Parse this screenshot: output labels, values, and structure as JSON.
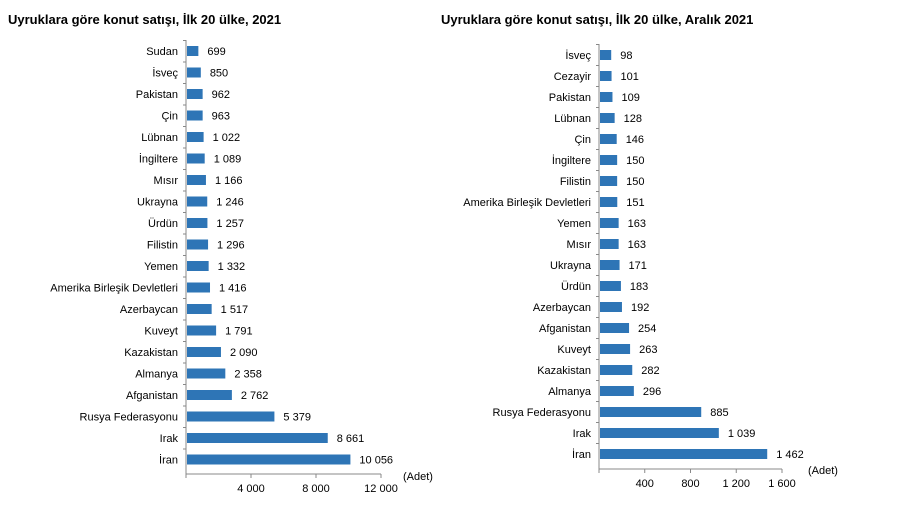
{
  "chart_data": [
    {
      "type": "bar",
      "orientation": "horizontal",
      "title": "Uyruklara göre konut satışı, İlk 20 ülke, 2021",
      "unit_label": "(Adet)",
      "categories": [
        "Sudan",
        "İsveç",
        "Pakistan",
        "Çin",
        "Lübnan",
        "İngiltere",
        "Mısır",
        "Ukrayna",
        "Ürdün",
        "Filistin",
        "Yemen",
        "Amerika Birleşik Devletleri",
        "Azerbaycan",
        "Kuveyt",
        "Kazakistan",
        "Almanya",
        "Afganistan",
        "Rusya Federasyonu",
        "Irak",
        "İran"
      ],
      "values": [
        699,
        850,
        962,
        963,
        1022,
        1089,
        1166,
        1246,
        1257,
        1296,
        1332,
        1416,
        1517,
        1791,
        2090,
        2358,
        2762,
        5379,
        8661,
        10056
      ],
      "value_labels": [
        "699",
        "850",
        "962",
        "963",
        "1 022",
        "1 089",
        "1 166",
        "1 246",
        "1 257",
        "1 296",
        "1 332",
        "1 416",
        "1 517",
        "1 791",
        "2 090",
        "2 358",
        "2 762",
        "5 379",
        "8 661",
        "10 056"
      ],
      "xlim": [
        0,
        12000
      ],
      "xticks": [
        4000,
        8000,
        12000
      ],
      "xtick_labels": [
        "4 000",
        "8 000",
        "12 000"
      ],
      "bar_color": "#2e75b6"
    },
    {
      "type": "bar",
      "orientation": "horizontal",
      "title": "Uyruklara göre konut satışı, İlk 20 ülke, Aralık 2021",
      "unit_label": "(Adet)",
      "categories": [
        "İsveç",
        "Cezayir",
        "Pakistan",
        "Lübnan",
        "Çin",
        "İngiltere",
        "Filistin",
        "Amerika Birleşik Devletleri",
        "Yemen",
        "Mısır",
        "Ukrayna",
        "Ürdün",
        "Azerbaycan",
        "Afganistan",
        "Kuveyt",
        "Kazakistan",
        "Almanya",
        "Rusya Federasyonu",
        "Irak",
        "İran"
      ],
      "values": [
        98,
        101,
        109,
        128,
        146,
        150,
        150,
        151,
        163,
        163,
        171,
        183,
        192,
        254,
        263,
        282,
        296,
        885,
        1039,
        1462
      ],
      "value_labels": [
        "98",
        "101",
        "109",
        "128",
        "146",
        "150",
        "150",
        "151",
        "163",
        "163",
        "171",
        "183",
        "192",
        "254",
        "263",
        "282",
        "296",
        "885",
        "1 039",
        "1 462"
      ],
      "xlim": [
        0,
        1600
      ],
      "xticks": [
        400,
        800,
        1200,
        1600
      ],
      "xtick_labels": [
        "400",
        "800",
        "1 200",
        "1 600"
      ],
      "bar_color": "#2e75b6"
    }
  ]
}
